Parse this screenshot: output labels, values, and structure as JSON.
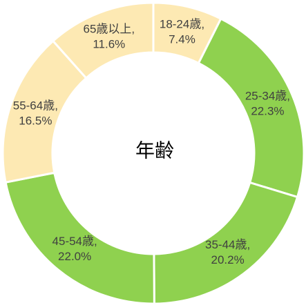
{
  "chart_data": {
    "type": "donut",
    "center_text": "年齢",
    "categories": [
      "18-24歳,",
      "25-34歳,",
      "35-44歳,",
      "45-54歳,",
      "55-64歳,",
      "65歳以上,"
    ],
    "values": [
      7.4,
      22.3,
      20.2,
      22.0,
      16.5,
      11.6
    ],
    "value_labels": [
      "7.4%",
      "22.3%",
      "20.2%",
      "22.0%",
      "16.5%",
      "11.6%"
    ],
    "colors": [
      "#fde9b3",
      "#8fd14f",
      "#8fd14f",
      "#8fd14f",
      "#fde9b3",
      "#fde9b3"
    ]
  }
}
